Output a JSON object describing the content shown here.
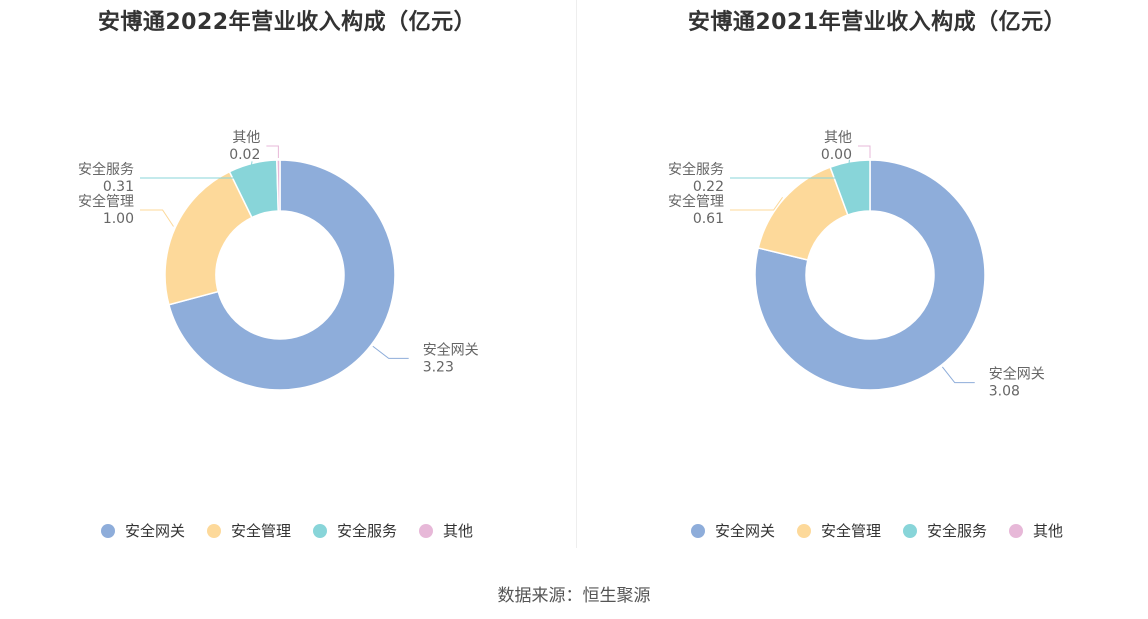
{
  "colors": [
    "#8eadda",
    "#fdd99a",
    "#88d5d9",
    "#e7b8d8"
  ],
  "source": "数据来源：恒生聚源",
  "chart_data": [
    {
      "type": "pie",
      "title": "安博通2022年营业收入构成（亿元）",
      "categories": [
        "安全网关",
        "安全管理",
        "安全服务",
        "其他"
      ],
      "values": [
        3.23,
        1.0,
        0.31,
        0.02
      ],
      "value_labels": [
        "3.23",
        "1.00",
        "0.31",
        "0.02"
      ],
      "legend_position": "bottom"
    },
    {
      "type": "pie",
      "title": "安博通2021年营业收入构成（亿元）",
      "categories": [
        "安全网关",
        "安全管理",
        "安全服务",
        "其他"
      ],
      "values": [
        3.08,
        0.61,
        0.22,
        0.0
      ],
      "value_labels": [
        "3.08",
        "0.61",
        "0.22",
        "0.00"
      ],
      "legend_position": "bottom"
    }
  ]
}
